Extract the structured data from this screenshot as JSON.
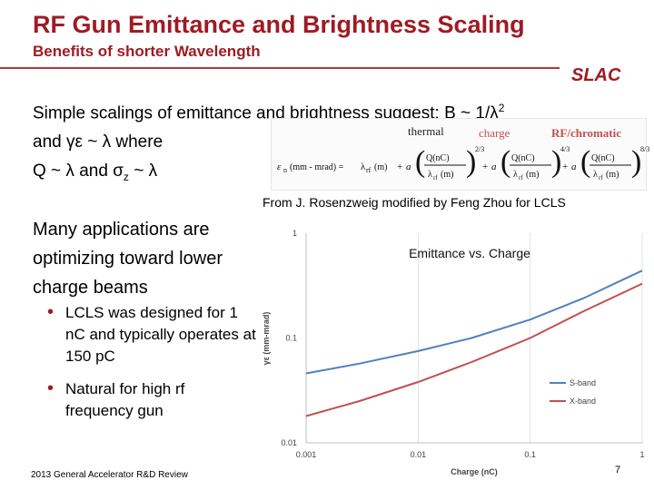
{
  "header": {
    "title": "RF Gun Emittance and Brightness Scaling",
    "subtitle": "Benefits of shorter Wavelength",
    "logo": "SLAC"
  },
  "intro": {
    "line1_a": "Simple scalings of emittance and brightness suggest: B ~ 1/λ",
    "line1_sup": "2",
    "line2": "and γε ~ λ where",
    "line3_a": "Q ~ λ and σ",
    "line3_sub": "z",
    "line3_b": " ~ λ"
  },
  "formula": {
    "label_thermal": "thermal",
    "label_charge": "charge",
    "label_rf": "RF/chromatic",
    "lhs": "ε",
    "lhs_sub": "n",
    "lhs_unit": "(mm - mrad) =",
    "term1": "λ",
    "term1_sub": "rf",
    "term1_unit": "(m)",
    "plus": "+",
    "frac_num": "Q(nC)",
    "frac_den": "λ",
    "frac_den_sub": "rf",
    "frac_den_unit": "(m)",
    "exp1": "2/3",
    "exp2": "4/3",
    "exp3": "8/3",
    "coef1": "a",
    "coef2": "a",
    "coef3": "a"
  },
  "credit": "From J. Rosenzweig modified by Feng Zhou for LCLS",
  "left_text": {
    "many": "Many applications are optimizing toward lower charge beams",
    "bullet1": "LCLS was designed for  1 nC and typically operates at 150 pC",
    "bullet2": "Natural for high rf frequency gun",
    "bullet_glyph": "•"
  },
  "chart_data": {
    "type": "line",
    "title": "Emittance vs. Charge",
    "xlabel": "Charge (nC)",
    "ylabel": "γε (mm-mrad)",
    "xscale": "log",
    "yscale": "log",
    "xlim": [
      0.001,
      1
    ],
    "ylim": [
      0.01,
      1
    ],
    "xticks": [
      "0.001",
      "0.01",
      "0.1",
      "1"
    ],
    "yticks": [
      "0.01",
      "0.1",
      "1"
    ],
    "grid": "vertical",
    "legend": "bottom-right",
    "series": [
      {
        "name": "S-band",
        "color": "#4f81bd",
        "x": [
          0.001,
          0.003,
          0.01,
          0.03,
          0.1,
          0.3,
          1
        ],
        "y": [
          0.046,
          0.057,
          0.075,
          0.1,
          0.15,
          0.24,
          0.44
        ]
      },
      {
        "name": "X-band",
        "color": "#c0504d",
        "x": [
          0.001,
          0.003,
          0.01,
          0.03,
          0.1,
          0.3,
          1
        ],
        "y": [
          0.018,
          0.025,
          0.038,
          0.059,
          0.1,
          0.18,
          0.33
        ]
      }
    ]
  },
  "footer": {
    "left": "2013 General Accelerator R&D Review",
    "page": "7"
  }
}
